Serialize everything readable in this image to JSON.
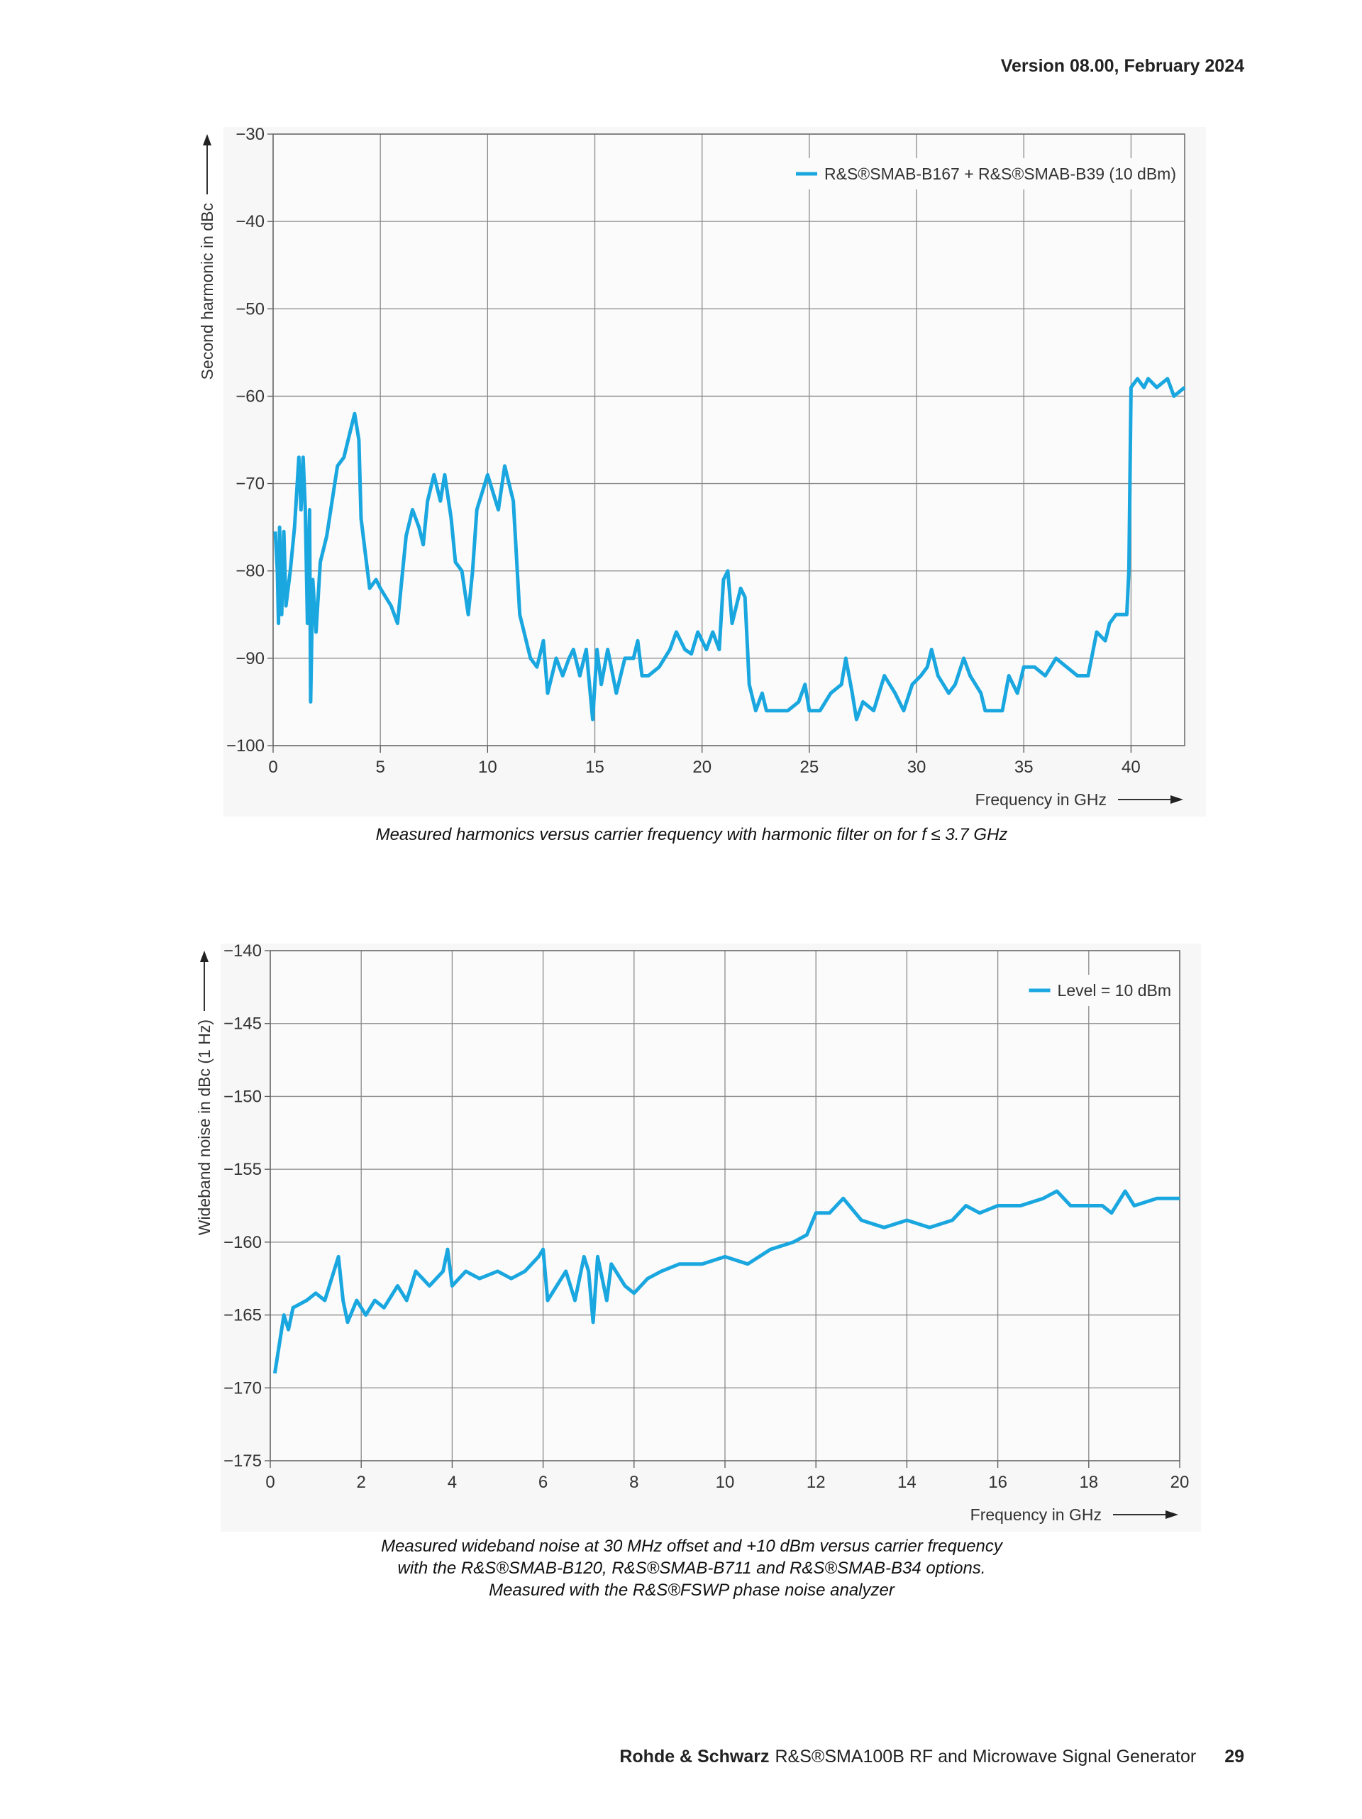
{
  "header": {
    "version": "Version 08.00, February 2024"
  },
  "chart_data": [
    {
      "type": "line",
      "xlabel": "Frequency in GHz",
      "ylabel": "Second harmonic in dBc",
      "xlim": [
        0,
        42.5
      ],
      "xticks": [
        0,
        5,
        10,
        15,
        20,
        25,
        30,
        35,
        40
      ],
      "ylim": [
        -100,
        -30
      ],
      "yticks": [
        {
          "value": -30,
          "label": "−30"
        },
        {
          "value": -40,
          "label": "−40"
        },
        {
          "value": -50,
          "label": "−50"
        },
        {
          "value": -60,
          "label": "−60"
        },
        {
          "value": -70,
          "label": "−70"
        },
        {
          "value": -80,
          "label": "−80"
        },
        {
          "value": -90,
          "label": "−90"
        },
        {
          "value": -100,
          "label": "−100"
        }
      ],
      "grid": true,
      "legend": "upper right",
      "x": [
        0.1,
        0.2,
        0.25,
        0.3,
        0.4,
        0.5,
        0.6,
        0.8,
        1.0,
        1.2,
        1.3,
        1.4,
        1.5,
        1.6,
        1.7,
        1.75,
        1.85,
        2.0,
        2.2,
        2.5,
        3.0,
        3.3,
        3.5,
        3.8,
        4.0,
        4.1,
        4.3,
        4.5,
        4.8,
        5.0,
        5.5,
        5.8,
        6.0,
        6.2,
        6.5,
        6.8,
        7.0,
        7.2,
        7.5,
        7.8,
        8.0,
        8.3,
        8.5,
        8.8,
        9.1,
        9.3,
        9.5,
        10.0,
        10.5,
        10.8,
        11.2,
        11.5,
        12.0,
        12.3,
        12.6,
        12.8,
        13.2,
        13.5,
        13.8,
        14.0,
        14.3,
        14.6,
        14.9,
        15.1,
        15.3,
        15.6,
        16.0,
        16.4,
        16.8,
        17.0,
        17.2,
        17.5,
        18.0,
        18.5,
        18.8,
        19.2,
        19.5,
        19.8,
        20.2,
        20.5,
        20.8,
        21.0,
        21.2,
        21.4,
        21.8,
        22.0,
        22.2,
        22.5,
        22.8,
        23.0,
        24.0,
        24.5,
        24.8,
        25.0,
        25.5,
        26.0,
        26.5,
        26.7,
        27.0,
        27.2,
        27.5,
        28.0,
        28.5,
        29.0,
        29.4,
        29.8,
        30.2,
        30.5,
        30.7,
        31.0,
        31.5,
        31.8,
        32.2,
        32.5,
        33.0,
        33.2,
        34.0,
        34.3,
        34.7,
        35.0,
        35.5,
        36.0,
        36.5,
        37.0,
        37.5,
        38.0,
        38.4,
        38.8,
        39.0,
        39.3,
        39.8,
        39.9,
        40.0,
        40.3,
        40.6,
        40.8,
        41.2,
        41.7,
        42.0,
        42.5
      ],
      "series": [
        {
          "name": "R&S®SMAB-B167 + R&S®SMAB-B39 (10 dBm)",
          "color": "#1aa7e0",
          "values": [
            -75.5,
            -80,
            -86,
            -75,
            -85,
            -75.5,
            -84,
            -80,
            -75,
            -67,
            -73,
            -67,
            -73,
            -86,
            -73,
            -95,
            -81,
            -87,
            -79,
            -76,
            -68,
            -67,
            -65,
            -62,
            -65,
            -74,
            -78,
            -82,
            -81,
            -82,
            -84,
            -86,
            -81,
            -76,
            -73,
            -75,
            -77,
            -72,
            -69,
            -72,
            -69,
            -74,
            -79,
            -80,
            -85,
            -80,
            -73,
            -69,
            -73,
            -68,
            -72,
            -85,
            -90,
            -91,
            -88,
            -94,
            -90,
            -92,
            -90,
            -89,
            -92,
            -89,
            -97,
            -89,
            -93,
            -89,
            -94,
            -90,
            -90,
            -88,
            -92,
            -92,
            -91,
            -89,
            -87,
            -89,
            -89.5,
            -87,
            -89,
            -87,
            -89,
            -81,
            -80,
            -86,
            -82,
            -83,
            -93,
            -96,
            -94,
            -96,
            -96,
            -95,
            -93,
            -96,
            -96,
            -94,
            -93,
            -90,
            -94,
            -97,
            -95,
            -96,
            -92,
            -94,
            -96,
            -93,
            -92,
            -91,
            -89,
            -92,
            -94,
            -93,
            -90,
            -92,
            -94,
            -96,
            -96,
            -92,
            -94,
            -91,
            -91,
            -92,
            -90,
            -91,
            -92,
            -92,
            -87,
            -88,
            -86,
            -85,
            -85,
            -80,
            -59,
            -58,
            -59,
            -58,
            -59,
            -58,
            -60,
            -59
          ]
        }
      ]
    },
    {
      "type": "line",
      "xlabel": "Frequency in GHz",
      "ylabel": "Wideband noise in dBc (1 Hz)",
      "xlim": [
        0,
        20
      ],
      "xticks": [
        0,
        2,
        4,
        6,
        8,
        10,
        12,
        14,
        16,
        18,
        20
      ],
      "ylim": [
        -175,
        -140
      ],
      "yticks": [
        {
          "value": -140,
          "label": "−140"
        },
        {
          "value": -145,
          "label": "−145"
        },
        {
          "value": -150,
          "label": "−150"
        },
        {
          "value": -155,
          "label": "−155"
        },
        {
          "value": -160,
          "label": "−160"
        },
        {
          "value": -165,
          "label": "−165"
        },
        {
          "value": -170,
          "label": "−170"
        },
        {
          "value": -175,
          "label": "−175"
        }
      ],
      "grid": true,
      "legend": "upper right",
      "x": [
        0.1,
        0.2,
        0.3,
        0.4,
        0.5,
        0.8,
        1.0,
        1.2,
        1.3,
        1.5,
        1.6,
        1.7,
        1.9,
        2.1,
        2.3,
        2.5,
        2.8,
        3.0,
        3.2,
        3.5,
        3.8,
        3.9,
        4.0,
        4.3,
        4.6,
        5.0,
        5.3,
        5.6,
        5.9,
        6.0,
        6.1,
        6.3,
        6.5,
        6.7,
        6.9,
        7.0,
        7.1,
        7.2,
        7.4,
        7.5,
        7.8,
        8.0,
        8.3,
        8.6,
        9.0,
        9.5,
        10.0,
        10.5,
        11.0,
        11.5,
        11.8,
        12.0,
        12.3,
        12.6,
        13.0,
        13.5,
        14.0,
        14.5,
        15.0,
        15.3,
        15.6,
        16.0,
        16.5,
        17.0,
        17.3,
        17.6,
        18.0,
        18.3,
        18.5,
        18.8,
        19.0,
        19.5,
        20.0
      ],
      "series": [
        {
          "name": "Level = 10 dBm",
          "color": "#1aa7e0",
          "values": [
            -169,
            -167,
            -165,
            -166,
            -164.5,
            -164,
            -163.5,
            -164,
            -163,
            -161,
            -164,
            -165.5,
            -164,
            -165,
            -164,
            -164.5,
            -163,
            -164,
            -162,
            -163,
            -162,
            -160.5,
            -163,
            -162,
            -162.5,
            -162,
            -162.5,
            -162,
            -161,
            -160.5,
            -164,
            -163,
            -162,
            -164,
            -161,
            -162,
            -165.5,
            -161,
            -164,
            -161.5,
            -163,
            -163.5,
            -162.5,
            -162,
            -161.5,
            -161.5,
            -161,
            -161.5,
            -160.5,
            -160,
            -159.5,
            -158,
            -158,
            -157,
            -158.5,
            -159,
            -158.5,
            -159,
            -158.5,
            -157.5,
            -158,
            -157.5,
            -157.5,
            -157,
            -156.5,
            -157.5,
            -157.5,
            -157.5,
            -158,
            -156.5,
            -157.5,
            -157,
            -157
          ]
        }
      ]
    }
  ],
  "captions": [
    [
      "Measured harmonics versus carrier frequency with harmonic filter on for f ≤ 3.7 GHz"
    ],
    [
      "Measured wideband noise at 30 MHz offset and +10 dBm versus carrier frequency",
      "with the R&S®SMAB-B120, R&S®SMAB-B711 and R&S®SMAB-B34 options.",
      "Measured with the R&S®FSWP phase noise analyzer"
    ]
  ],
  "footer": {
    "company": "Rohde & Schwarz",
    "product": "R&S®SMA100B RF and Microwave Signal Generator",
    "page": "29"
  }
}
